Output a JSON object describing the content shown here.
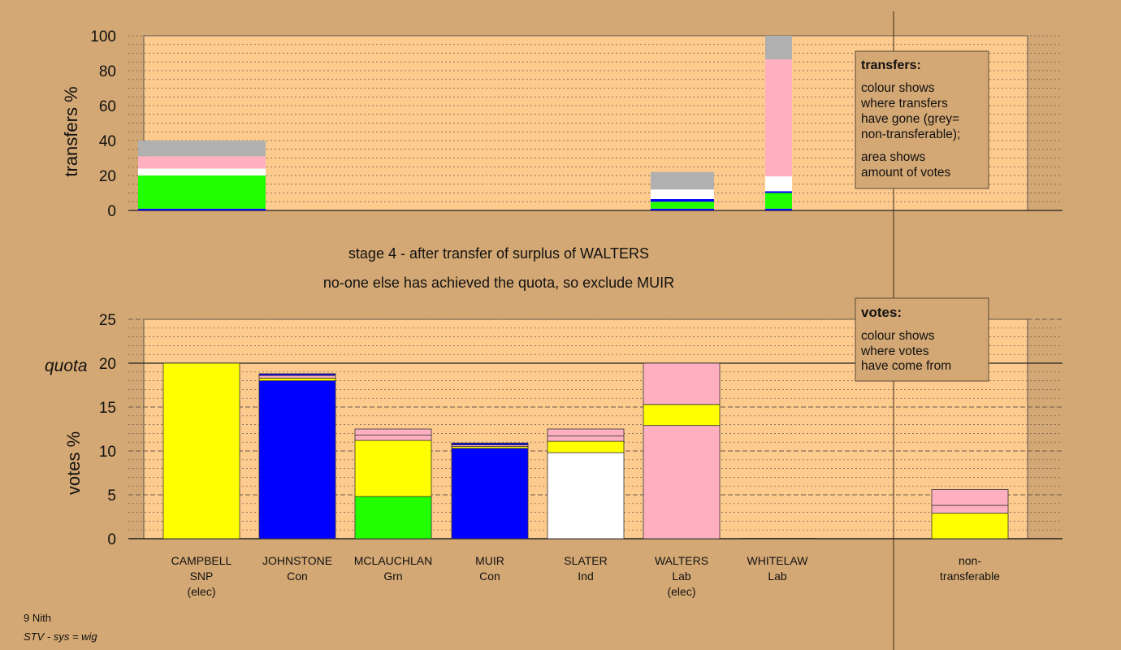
{
  "colors": {
    "background": "#d4a874",
    "plot_bg": "#fdcb8e",
    "SNP": "#ffff00",
    "Con": "#0000ff",
    "Grn": "#22ff00",
    "Ind": "#ffffff",
    "Lab": "#ffb0c0",
    "non-transferable": "#b0b0b0"
  },
  "headings": {
    "line1": "stage 4 - after transfer of surplus of WALTERS",
    "line2": "no-one else has achieved the quota, so exclude MUIR"
  },
  "footer": {
    "line1": "9 Nith",
    "line2": "STV - sys = wig"
  },
  "transfers_box": {
    "title": "transfers:",
    "lines": [
      "colour shows",
      "where transfers",
      "have gone (grey=",
      "non-transferable);"
    ],
    "lines2": [
      "area shows",
      "amount of votes"
    ]
  },
  "votes_box": {
    "title": "votes:",
    "lines": [
      "colour shows",
      "where votes",
      "have come from"
    ]
  },
  "chart_data": [
    {
      "type": "bar",
      "stacked": true,
      "ylabel": "transfers %",
      "ylim": [
        0,
        100
      ],
      "yticks": [
        "0",
        "20",
        "40",
        "60",
        "80",
        "100"
      ],
      "bars": [
        {
          "segments": [
            {
              "color_key": "Con",
              "value": 1
            },
            {
              "color_key": "Grn",
              "value": 19
            },
            {
              "color_key": "Ind",
              "value": 4
            },
            {
              "color_key": "Lab",
              "value": 7
            },
            {
              "color_key": "non-transferable",
              "value": 9
            }
          ]
        },
        {
          "segments": [
            {
              "color_key": "Con",
              "value": 1
            },
            {
              "color_key": "Grn",
              "value": 4
            },
            {
              "color_key": "Con",
              "value": 1.5
            },
            {
              "color_key": "Ind",
              "value": 5.5
            },
            {
              "color_key": "non-transferable",
              "value": 10
            }
          ]
        },
        {
          "segments": [
            {
              "color_key": "Con",
              "value": 1
            },
            {
              "color_key": "Grn",
              "value": 9
            },
            {
              "color_key": "Con",
              "value": 1
            },
            {
              "color_key": "Ind",
              "value": 8.5
            },
            {
              "color_key": "Lab",
              "value": 67
            },
            {
              "color_key": "non-transferable",
              "value": 13.5
            }
          ]
        }
      ]
    },
    {
      "type": "bar",
      "stacked": true,
      "ylabel": "votes %",
      "quota_label": "quota",
      "quota": 20,
      "ylim": [
        0,
        25
      ],
      "yticks": [
        "0",
        "5",
        "10",
        "15",
        "20",
        "25"
      ],
      "categories": [
        {
          "name": "CAMPBELL",
          "party": "SNP",
          "note": "(elec)"
        },
        {
          "name": "JOHNSTONE",
          "party": "Con",
          "note": ""
        },
        {
          "name": "MCLAUCHLAN",
          "party": "Grn",
          "note": ""
        },
        {
          "name": "MUIR",
          "party": "Con",
          "note": ""
        },
        {
          "name": "SLATER",
          "party": "Ind",
          "note": ""
        },
        {
          "name": "WALTERS",
          "party": "Lab",
          "note": "(elec)"
        },
        {
          "name": "WHITELAW",
          "party": "Lab",
          "note": ""
        },
        {
          "name": "non-",
          "party": "transferable",
          "note": ""
        }
      ],
      "bars": [
        [
          {
            "color_key": "SNP",
            "value": 20
          }
        ],
        [
          {
            "color_key": "Con",
            "value": 18
          },
          {
            "color_key": "SNP",
            "value": 0.3
          },
          {
            "color_key": "Lab",
            "value": 0.3
          },
          {
            "color_key": "Con",
            "value": 0.2
          }
        ],
        [
          {
            "color_key": "Grn",
            "value": 4.8
          },
          {
            "color_key": "SNP",
            "value": 6.4
          },
          {
            "color_key": "Lab",
            "value": 0.6
          },
          {
            "color_key": "Lab",
            "value": 0.7
          }
        ],
        [
          {
            "color_key": "Con",
            "value": 10.3
          },
          {
            "color_key": "SNP",
            "value": 0.2
          },
          {
            "color_key": "Lab",
            "value": 0.2
          },
          {
            "color_key": "Con",
            "value": 0.2
          }
        ],
        [
          {
            "color_key": "Ind",
            "value": 9.8
          },
          {
            "color_key": "SNP",
            "value": 1.3
          },
          {
            "color_key": "Lab",
            "value": 0.6
          },
          {
            "color_key": "Lab",
            "value": 0.8
          }
        ],
        [
          {
            "color_key": "Lab",
            "value": 12.9
          },
          {
            "color_key": "SNP",
            "value": 2.4
          },
          {
            "color_key": "Lab",
            "value": 4.7
          }
        ],
        [
          {
            "color_key": "Lab",
            "value": 0.05
          }
        ],
        [
          {
            "color_key": "SNP",
            "value": 2.9
          },
          {
            "color_key": "Lab",
            "value": 0.9
          },
          {
            "color_key": "Lab",
            "value": 1.8
          }
        ]
      ]
    }
  ]
}
